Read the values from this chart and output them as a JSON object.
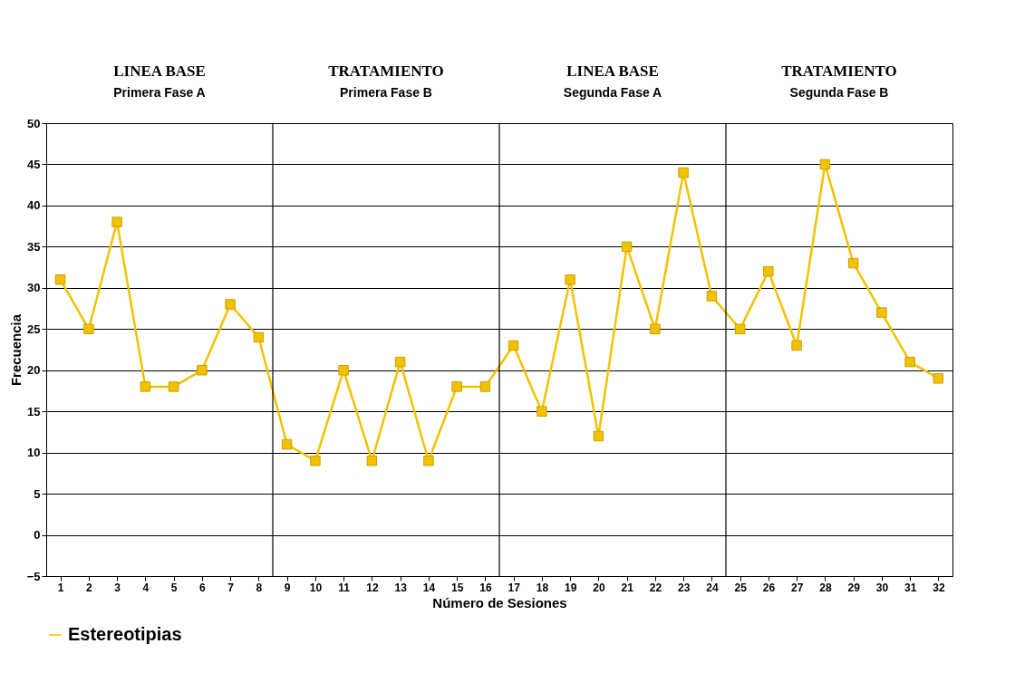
{
  "chart_data": {
    "type": "line",
    "xlabel": "Número de Sesiones",
    "ylabel": "Frecuencia",
    "x": [
      1,
      2,
      3,
      4,
      5,
      6,
      7,
      8,
      9,
      10,
      11,
      12,
      13,
      14,
      15,
      16,
      17,
      18,
      19,
      20,
      21,
      22,
      23,
      24,
      25,
      26,
      27,
      28,
      29,
      30,
      31,
      32
    ],
    "series": [
      {
        "name": "Estereotipias",
        "color": "#f2c200",
        "values": [
          31,
          25,
          38,
          18,
          18,
          20,
          28,
          24,
          11,
          9,
          20,
          9,
          21,
          9,
          18,
          18,
          23,
          15,
          31,
          12,
          35,
          25,
          44,
          29,
          25,
          32,
          23,
          45,
          33,
          27,
          21,
          19
        ]
      }
    ],
    "xlim": [
      0.5,
      32.5
    ],
    "xticks": [
      1,
      2,
      3,
      4,
      5,
      6,
      7,
      8,
      9,
      10,
      11,
      12,
      13,
      14,
      15,
      16,
      17,
      18,
      19,
      20,
      21,
      22,
      23,
      24,
      25,
      26,
      27,
      28,
      29,
      30,
      31,
      32
    ],
    "ylim": [
      -5,
      50
    ],
    "yticks": [
      -5,
      0,
      5,
      10,
      15,
      20,
      25,
      30,
      35,
      40,
      45,
      50
    ],
    "grid": "y",
    "marker": "square",
    "line_style": "solid",
    "legend": "bottom left",
    "ref_lines": [
      {
        "axis": "x",
        "value": 8.5,
        "color": "#000000"
      },
      {
        "axis": "x",
        "value": 16.5,
        "color": "#000000"
      },
      {
        "axis": "x",
        "value": 24.5,
        "color": "#000000"
      }
    ],
    "annotations": [
      "LINEA BASE\nPrimera Fase A",
      "TRATAMIENTO\nPrimera Fase B",
      "LINEA BASE\nSegunda Fase A",
      "TRATAMIENTO\nSegunda Fase B"
    ]
  }
}
